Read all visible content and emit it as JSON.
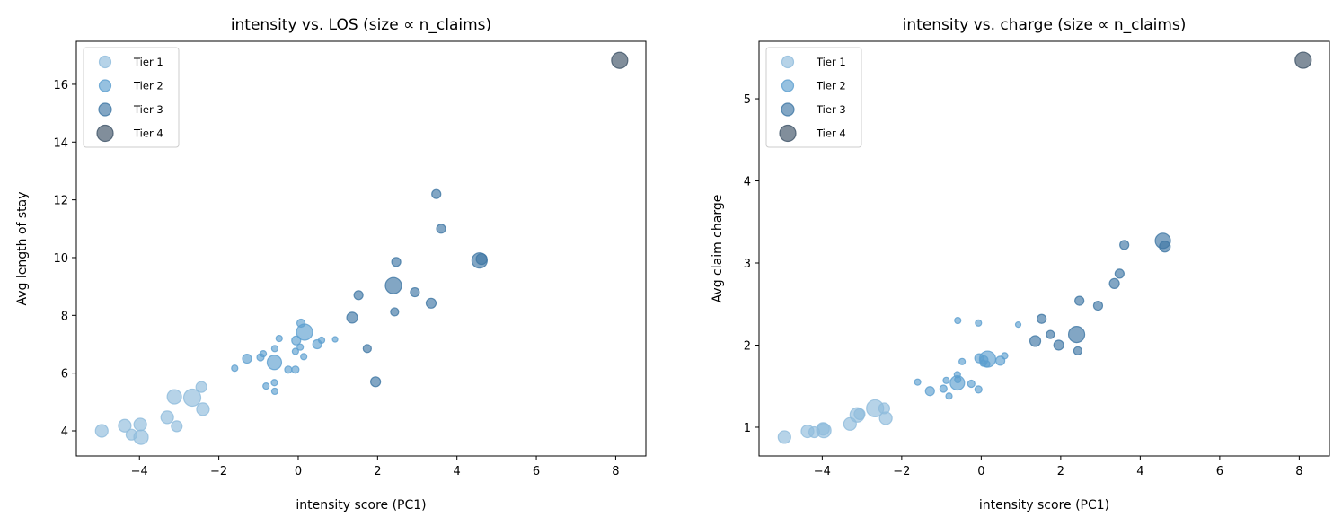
{
  "tier_colors": {
    "Tier 1": "#8fbcdc",
    "Tier 2": "#5d9fd0",
    "Tier 3": "#3f77a4",
    "Tier 4": "#3d5266"
  },
  "chart_data": [
    {
      "type": "scatter",
      "title": "intensity vs. LOS (size ∝ n_claims)",
      "xlabel": "intensity score (PC1)",
      "ylabel": "Avg length of stay",
      "xlim": [
        -5.59,
        8.76
      ],
      "ylim": [
        3.13,
        17.49
      ],
      "xticks": [
        -4,
        -2,
        0,
        2,
        4,
        6,
        8
      ],
      "xtick_labels": [
        "−4",
        "−2",
        "0",
        "2",
        "4",
        "6",
        "8"
      ],
      "yticks": [
        4,
        6,
        8,
        10,
        12,
        14,
        16
      ],
      "ytick_labels": [
        "4",
        "6",
        "8",
        "10",
        "12",
        "14",
        "16"
      ],
      "yfield": "los",
      "legend": {
        "placement": "top-left",
        "entries": [
          "Tier 1",
          "Tier 2",
          "Tier 3",
          "Tier 4"
        ]
      }
    },
    {
      "type": "scatter",
      "title": "intensity vs. charge (size ∝ n_claims)",
      "xlabel": "intensity score (PC1)",
      "ylabel": "Avg claim charge",
      "xlim": [
        -5.59,
        8.76
      ],
      "ylim": [
        0.65,
        5.7
      ],
      "xticks": [
        -4,
        -2,
        0,
        2,
        4,
        6,
        8
      ],
      "xtick_labels": [
        "−4",
        "−2",
        "0",
        "2",
        "4",
        "6",
        "8"
      ],
      "yticks": [
        1,
        2,
        3,
        4,
        5
      ],
      "ytick_labels": [
        "1",
        "2",
        "3",
        "4",
        "5"
      ],
      "yfield": "charge",
      "legend": {
        "placement": "top-left",
        "entries": [
          "Tier 1",
          "Tier 2",
          "Tier 3",
          "Tier 4"
        ]
      }
    }
  ],
  "points": [
    {
      "x": -4.95,
      "los": 4.0,
      "charge": 0.88,
      "tier": "Tier 1",
      "size": 7
    },
    {
      "x": -4.37,
      "los": 4.18,
      "charge": 0.95,
      "tier": "Tier 1",
      "size": 7
    },
    {
      "x": -4.2,
      "los": 3.87,
      "charge": 0.94,
      "tier": "Tier 1",
      "size": 6
    },
    {
      "x": -3.98,
      "los": 4.22,
      "charge": 0.98,
      "tier": "Tier 1",
      "size": 7
    },
    {
      "x": -3.96,
      "los": 3.78,
      "charge": 0.96,
      "tier": "Tier 1",
      "size": 8
    },
    {
      "x": -3.3,
      "los": 4.47,
      "charge": 1.04,
      "tier": "Tier 1",
      "size": 7
    },
    {
      "x": -3.06,
      "los": 4.16,
      "charge": 1.16,
      "tier": "Tier 1",
      "size": 6
    },
    {
      "x": -3.12,
      "los": 5.18,
      "charge": 1.15,
      "tier": "Tier 1",
      "size": 8
    },
    {
      "x": -2.67,
      "los": 5.15,
      "charge": 1.23,
      "tier": "Tier 1",
      "size": 9.5
    },
    {
      "x": -2.44,
      "los": 5.52,
      "charge": 1.23,
      "tier": "Tier 1",
      "size": 6
    },
    {
      "x": -2.4,
      "los": 4.75,
      "charge": 1.11,
      "tier": "Tier 1",
      "size": 7
    },
    {
      "x": -1.6,
      "los": 6.17,
      "charge": 1.55,
      "tier": "Tier 2",
      "size": 3.5
    },
    {
      "x": -1.29,
      "los": 6.5,
      "charge": 1.44,
      "tier": "Tier 2",
      "size": 5
    },
    {
      "x": -0.95,
      "los": 6.55,
      "charge": 1.47,
      "tier": "Tier 2",
      "size": 4
    },
    {
      "x": -0.88,
      "los": 6.67,
      "charge": 1.57,
      "tier": "Tier 2",
      "size": 3.5
    },
    {
      "x": -0.81,
      "los": 5.55,
      "charge": 1.38,
      "tier": "Tier 2",
      "size": 3.5
    },
    {
      "x": -0.6,
      "los": 5.67,
      "charge": 1.64,
      "tier": "Tier 2",
      "size": 3.5
    },
    {
      "x": -0.59,
      "los": 5.37,
      "charge": 1.58,
      "tier": "Tier 2",
      "size": 3.5
    },
    {
      "x": -0.6,
      "los": 6.37,
      "charge": 1.54,
      "tier": "Tier 2",
      "size": 8
    },
    {
      "x": -0.59,
      "los": 6.85,
      "charge": 2.3,
      "tier": "Tier 2",
      "size": 3.5
    },
    {
      "x": -0.48,
      "los": 7.2,
      "charge": 1.8,
      "tier": "Tier 2",
      "size": 3.5
    },
    {
      "x": -0.25,
      "los": 6.12,
      "charge": 1.53,
      "tier": "Tier 2",
      "size": 4
    },
    {
      "x": -0.07,
      "los": 6.12,
      "charge": 1.46,
      "tier": "Tier 2",
      "size": 4
    },
    {
      "x": -0.07,
      "los": 6.75,
      "charge": 2.27,
      "tier": "Tier 2",
      "size": 3.5
    },
    {
      "x": -0.05,
      "los": 7.13,
      "charge": 1.84,
      "tier": "Tier 2",
      "size": 5
    },
    {
      "x": 0.07,
      "los": 7.73,
      "charge": 1.82,
      "tier": "Tier 2",
      "size": 4.5
    },
    {
      "x": 0.16,
      "los": 7.42,
      "charge": 1.83,
      "tier": "Tier 2",
      "size": 9
    },
    {
      "x": 0.05,
      "los": 6.9,
      "charge": 1.78,
      "tier": "Tier 2",
      "size": 3.5
    },
    {
      "x": 0.14,
      "los": 6.57,
      "charge": 1.77,
      "tier": "Tier 2",
      "size": 3.5
    },
    {
      "x": 0.48,
      "los": 7.0,
      "charge": 1.81,
      "tier": "Tier 2",
      "size": 5
    },
    {
      "x": 0.59,
      "los": 7.14,
      "charge": 1.87,
      "tier": "Tier 2",
      "size": 3.5
    },
    {
      "x": 0.93,
      "los": 7.17,
      "charge": 2.25,
      "tier": "Tier 2",
      "size": 3
    },
    {
      "x": 1.36,
      "los": 7.92,
      "charge": 2.05,
      "tier": "Tier 3",
      "size": 6
    },
    {
      "x": 1.52,
      "los": 8.7,
      "charge": 2.32,
      "tier": "Tier 3",
      "size": 5
    },
    {
      "x": 1.74,
      "los": 6.85,
      "charge": 2.13,
      "tier": "Tier 3",
      "size": 4.5
    },
    {
      "x": 1.95,
      "los": 5.7,
      "charge": 2.0,
      "tier": "Tier 3",
      "size": 5.5
    },
    {
      "x": 2.4,
      "los": 9.03,
      "charge": 2.13,
      "tier": "Tier 3",
      "size": 9
    },
    {
      "x": 2.43,
      "los": 8.12,
      "charge": 1.93,
      "tier": "Tier 3",
      "size": 4.5
    },
    {
      "x": 2.47,
      "los": 9.85,
      "charge": 2.54,
      "tier": "Tier 3",
      "size": 5
    },
    {
      "x": 2.94,
      "los": 8.8,
      "charge": 2.48,
      "tier": "Tier 3",
      "size": 5
    },
    {
      "x": 3.35,
      "los": 8.42,
      "charge": 2.75,
      "tier": "Tier 3",
      "size": 5.5
    },
    {
      "x": 3.48,
      "los": 12.2,
      "charge": 2.87,
      "tier": "Tier 3",
      "size": 5
    },
    {
      "x": 3.6,
      "los": 11.0,
      "charge": 3.22,
      "tier": "Tier 3",
      "size": 5
    },
    {
      "x": 4.57,
      "los": 9.9,
      "charge": 3.27,
      "tier": "Tier 3",
      "size": 8.5
    },
    {
      "x": 4.62,
      "los": 9.95,
      "charge": 3.2,
      "tier": "Tier 3",
      "size": 6
    },
    {
      "x": 8.1,
      "los": 16.83,
      "charge": 5.47,
      "tier": "Tier 4",
      "size": 9
    }
  ]
}
